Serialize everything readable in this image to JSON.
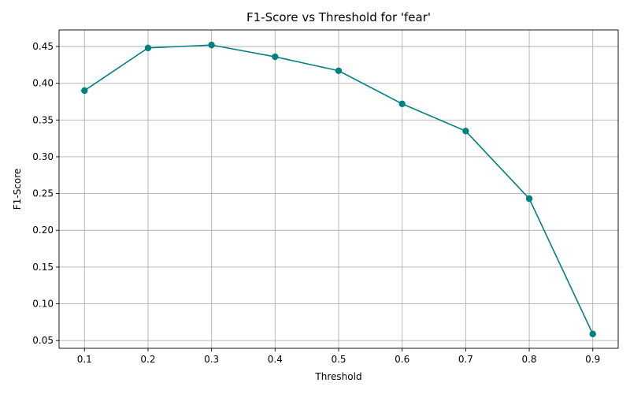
{
  "chart_data": {
    "type": "line",
    "title": "F1-Score vs Threshold for 'fear'",
    "xlabel": "Threshold",
    "ylabel": "F1-Score",
    "x": [
      0.1,
      0.2,
      0.3,
      0.4,
      0.5,
      0.6,
      0.7,
      0.8,
      0.9
    ],
    "series": [
      {
        "values": [
          0.39,
          0.448,
          0.452,
          0.436,
          0.417,
          0.372,
          0.335,
          0.243,
          0.059
        ],
        "color": "#008080",
        "marker": "circle"
      }
    ],
    "xlim": [
      0.06,
      0.94
    ],
    "ylim": [
      0.0395,
      0.4725
    ],
    "xticks": [
      "0.1",
      "0.2",
      "0.3",
      "0.4",
      "0.5",
      "0.6",
      "0.7",
      "0.8",
      "0.9"
    ],
    "yticks": [
      "0.05",
      "0.10",
      "0.15",
      "0.20",
      "0.25",
      "0.30",
      "0.35",
      "0.40",
      "0.45"
    ],
    "grid": true
  }
}
